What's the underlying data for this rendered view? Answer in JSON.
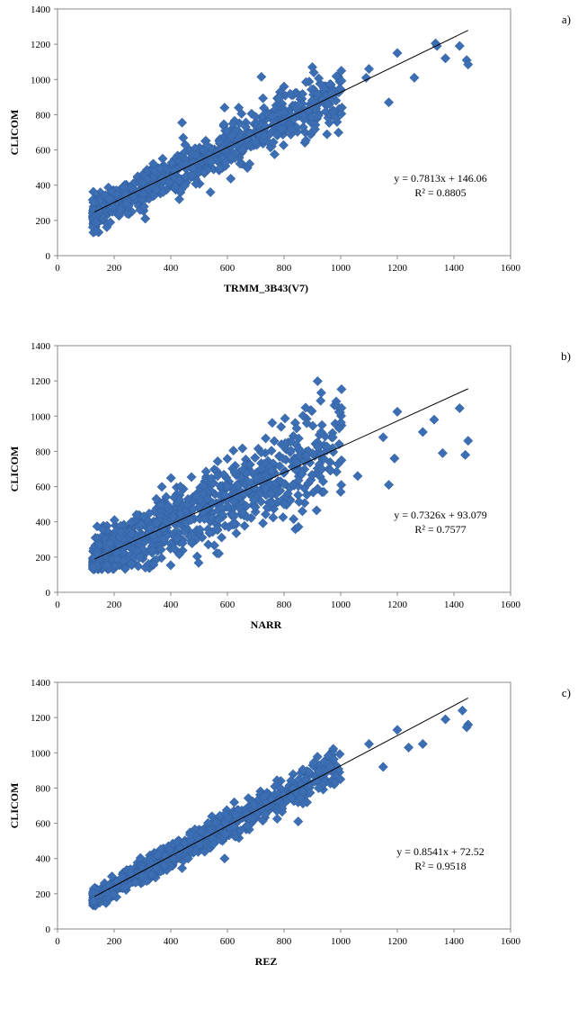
{
  "chart_data": [
    {
      "type": "scatter",
      "panel_label": "a)",
      "xlabel": "TRMM_3B43(V7)",
      "ylabel": "CLICOM",
      "xlim": [
        0,
        1600
      ],
      "ylim": [
        0,
        1400
      ],
      "xticks": [
        "0",
        "200",
        "400",
        "600",
        "800",
        "1000",
        "1200",
        "1400",
        "1600"
      ],
      "yticks": [
        "0",
        "200",
        "400",
        "600",
        "800",
        "1000",
        "1200",
        "1400"
      ],
      "trendline": {
        "slope": 0.7813,
        "intercept": 146.06,
        "x_range": [
          130,
          1450
        ]
      },
      "equation": "y = 0.7813x + 146.06",
      "r2_label": "R² = 0.8805",
      "seed": 11,
      "n_points": 900,
      "noise": 60,
      "marker_color": "#3c6eb4",
      "series": [
        {
          "name": "CLICOM vs TRMM_3B43(V7)",
          "points": [
            [
              1335,
              1205
            ],
            [
              1340,
              1190
            ],
            [
              1370,
              1120
            ],
            [
              1420,
              1190
            ],
            [
              1445,
              1110
            ],
            [
              1450,
              1085
            ],
            [
              1260,
              1010
            ],
            [
              1200,
              1150
            ],
            [
              1170,
              870
            ],
            [
              1100,
              1060
            ],
            [
              1090,
              1010
            ],
            [
              980,
              780
            ],
            [
              900,
              1070
            ],
            [
              720,
              1015
            ],
            [
              640,
              840
            ],
            [
              590,
              840
            ],
            [
              540,
              360
            ],
            [
              440,
              755
            ],
            [
              430,
              320
            ],
            [
              310,
              210
            ]
          ]
        }
      ]
    },
    {
      "type": "scatter",
      "panel_label": "b)",
      "xlabel": "NARR",
      "ylabel": "CLICOM",
      "xlim": [
        0,
        1600
      ],
      "ylim": [
        0,
        1400
      ],
      "xticks": [
        "0",
        "200",
        "400",
        "600",
        "800",
        "1000",
        "1200",
        "1400",
        "1600"
      ],
      "yticks": [
        "0",
        "200",
        "400",
        "600",
        "800",
        "1000",
        "1200",
        "1400"
      ],
      "trendline": {
        "slope": 0.7326,
        "intercept": 93.079,
        "x_range": [
          130,
          1450
        ]
      },
      "equation": "y = 0.7326x + 93.079",
      "r2_label": "R² = 0.7577",
      "seed": 23,
      "n_points": 900,
      "noise": 95,
      "marker_color": "#3c6eb4",
      "series": [
        {
          "name": "CLICOM vs NARR",
          "points": [
            [
              1420,
              1045
            ],
            [
              1450,
              860
            ],
            [
              1440,
              780
            ],
            [
              1360,
              790
            ],
            [
              1330,
              980
            ],
            [
              1290,
              910
            ],
            [
              1200,
              1025
            ],
            [
              1190,
              760
            ],
            [
              1170,
              610
            ],
            [
              1150,
              880
            ],
            [
              1060,
              660
            ],
            [
              1000,
              570
            ],
            [
              940,
              570
            ],
            [
              880,
              960
            ],
            [
              800,
              500
            ],
            [
              740,
              480
            ],
            [
              570,
              220
            ],
            [
              430,
              215
            ],
            [
              310,
              140
            ],
            [
              260,
              160
            ]
          ]
        }
      ]
    },
    {
      "type": "scatter",
      "panel_label": "c)",
      "xlabel": "REZ",
      "ylabel": "CLICOM",
      "xlim": [
        0,
        1600
      ],
      "ylim": [
        0,
        1400
      ],
      "xticks": [
        "0",
        "200",
        "400",
        "600",
        "800",
        "1000",
        "1200",
        "1400",
        "1600"
      ],
      "yticks": [
        "0",
        "200",
        "400",
        "600",
        "800",
        "1000",
        "1200",
        "1400"
      ],
      "trendline": {
        "slope": 0.8541,
        "intercept": 72.52,
        "x_range": [
          130,
          1450
        ]
      },
      "equation": "y = 0.8541x + 72.52",
      "r2_label": "R² = 0.9518",
      "seed": 37,
      "n_points": 900,
      "noise": 35,
      "marker_color": "#3c6eb4",
      "series": [
        {
          "name": "CLICOM vs REZ",
          "points": [
            [
              1430,
              1240
            ],
            [
              1450,
              1160
            ],
            [
              1445,
              1145
            ],
            [
              1370,
              1190
            ],
            [
              1290,
              1050
            ],
            [
              1240,
              1030
            ],
            [
              1200,
              1130
            ],
            [
              1150,
              920
            ],
            [
              1100,
              1050
            ],
            [
              980,
              830
            ],
            [
              850,
              610
            ],
            [
              780,
              730
            ],
            [
              590,
              400
            ],
            [
              440,
              345
            ],
            [
              300,
              300
            ]
          ]
        }
      ]
    }
  ]
}
